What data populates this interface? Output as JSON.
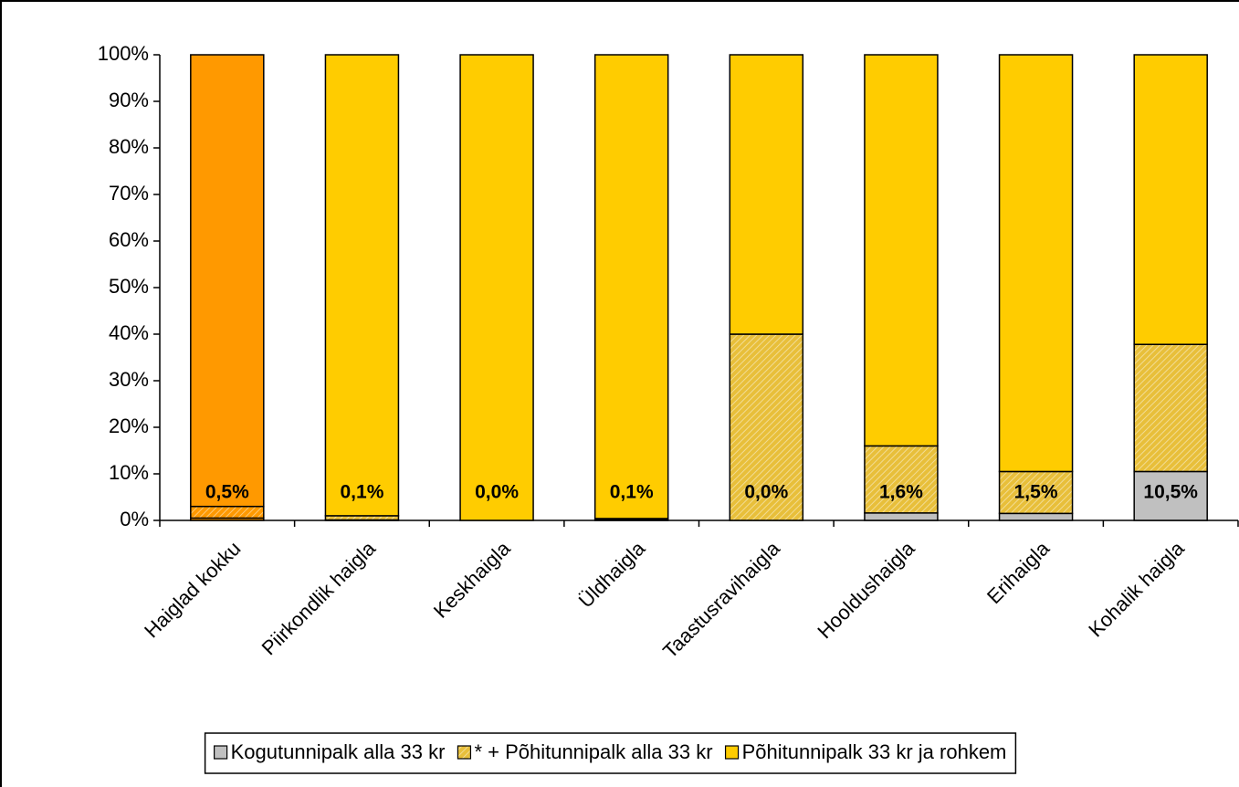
{
  "chart_data": {
    "type": "stacked_bar_percent",
    "categories": [
      "Haiglad kokku",
      "Piirkondlik haigla",
      "Keskhaigla",
      "Üldhaigla",
      "Taastusravihaigla",
      "Hooldushaigla",
      "Erihaigla",
      "Kohalik haigla"
    ],
    "series": [
      {
        "name": "Kogutunnipalk alla 33 kr",
        "color": "#c0c0c0",
        "hatch": false,
        "values": [
          0.5,
          0.1,
          0.0,
          0.1,
          0.0,
          1.6,
          1.5,
          10.5
        ],
        "value_labels": [
          "0,5%",
          "0,1%",
          "0,0%",
          "0,1%",
          "0,0%",
          "1,6%",
          "1,5%",
          "10,5%"
        ]
      },
      {
        "name": "* + Põhitunnipalk alla 33 kr",
        "color": "#e8bf3a",
        "hatch": true,
        "values": [
          2.5,
          0.9,
          0.0,
          0.3,
          40.0,
          14.4,
          9.0,
          27.3
        ]
      },
      {
        "name": "Põhitunnipalk 33 kr ja rohkem",
        "color": "#ffcc00",
        "hatch": false,
        "values": [
          97.0,
          99.0,
          100.0,
          99.6,
          60.0,
          84.0,
          89.5,
          62.2
        ]
      }
    ],
    "highlight": {
      "index": 0,
      "color": "#ff9900"
    },
    "ylim": [
      0,
      100
    ],
    "yticks": [
      {
        "value": 0,
        "label": "0%"
      },
      {
        "value": 10,
        "label": "10%"
      },
      {
        "value": 20,
        "label": "20%"
      },
      {
        "value": 30,
        "label": "30%"
      },
      {
        "value": 40,
        "label": "40%"
      },
      {
        "value": 50,
        "label": "50%"
      },
      {
        "value": 60,
        "label": "60%"
      },
      {
        "value": 70,
        "label": "70%"
      },
      {
        "value": 80,
        "label": "80%"
      },
      {
        "value": 90,
        "label": "90%"
      },
      {
        "value": 100,
        "label": "100%"
      }
    ],
    "legend": "bottom"
  }
}
